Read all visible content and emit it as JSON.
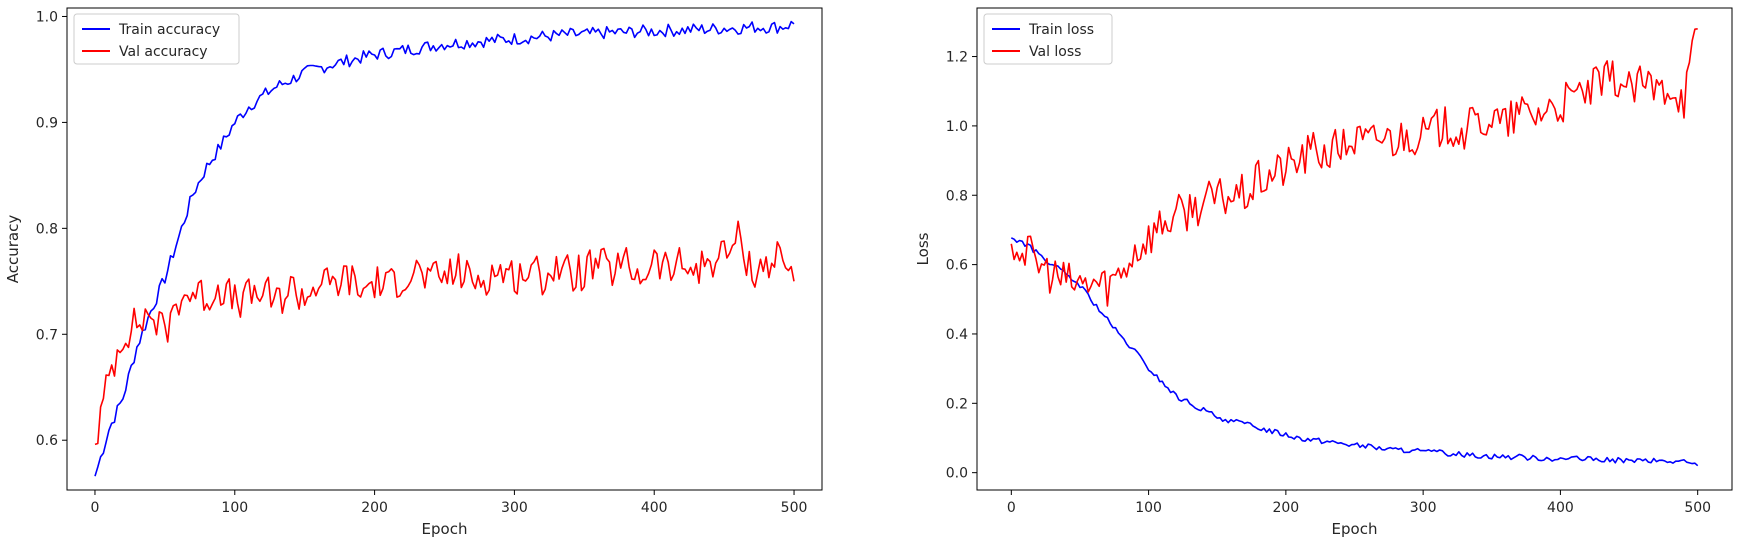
{
  "chart_data": [
    {
      "type": "line",
      "title": "",
      "xlabel": "Epoch",
      "ylabel": "Accuracy",
      "xlim": [
        -20,
        520
      ],
      "ylim": [
        0.553,
        1.008
      ],
      "xticks": [
        0,
        100,
        200,
        300,
        400,
        500
      ],
      "xtick_labels": [
        "0",
        "100",
        "200",
        "300",
        "400",
        "500"
      ],
      "yticks": [
        0.6,
        0.7,
        0.8,
        0.9,
        1.0
      ],
      "ytick_labels": [
        "0.6",
        "0.7",
        "0.8",
        "0.9",
        "1.0"
      ],
      "grid": false,
      "legend": "top-left",
      "series": [
        {
          "name": "Train accuracy",
          "color": "#0000ff",
          "x": [
            0,
            10,
            20,
            30,
            40,
            50,
            60,
            70,
            80,
            90,
            100,
            110,
            120,
            130,
            140,
            150,
            160,
            170,
            180,
            190,
            200,
            210,
            220,
            230,
            240,
            250,
            260,
            270,
            280,
            290,
            300,
            310,
            320,
            330,
            340,
            350,
            360,
            370,
            380,
            390,
            400,
            410,
            420,
            430,
            440,
            450,
            460,
            470,
            480,
            490,
            500
          ],
          "y": [
            0.566,
            0.61,
            0.64,
            0.688,
            0.722,
            0.753,
            0.792,
            0.832,
            0.858,
            0.878,
            0.9,
            0.915,
            0.925,
            0.934,
            0.94,
            0.947,
            0.951,
            0.955,
            0.958,
            0.961,
            0.964,
            0.966,
            0.968,
            0.97,
            0.972,
            0.974,
            0.975,
            0.976,
            0.977,
            0.978,
            0.979,
            0.98,
            0.981,
            0.982,
            0.983,
            0.983,
            0.984,
            0.985,
            0.985,
            0.986,
            0.986,
            0.987,
            0.987,
            0.988,
            0.988,
            0.989,
            0.989,
            0.99,
            0.99,
            0.99,
            0.993
          ]
        },
        {
          "name": "Val accuracy",
          "color": "#ff0000",
          "x": [
            0,
            10,
            20,
            30,
            40,
            50,
            60,
            70,
            80,
            90,
            100,
            110,
            120,
            130,
            140,
            150,
            160,
            170,
            180,
            190,
            200,
            210,
            220,
            230,
            240,
            250,
            260,
            270,
            280,
            290,
            300,
            310,
            320,
            330,
            340,
            350,
            360,
            370,
            380,
            390,
            400,
            410,
            420,
            430,
            440,
            450,
            460,
            470,
            480,
            490,
            500
          ],
          "y": [
            0.596,
            0.66,
            0.7,
            0.71,
            0.72,
            0.7,
            0.735,
            0.74,
            0.735,
            0.745,
            0.73,
            0.735,
            0.74,
            0.73,
            0.745,
            0.735,
            0.75,
            0.745,
            0.755,
            0.74,
            0.75,
            0.745,
            0.755,
            0.76,
            0.75,
            0.755,
            0.76,
            0.75,
            0.755,
            0.76,
            0.755,
            0.76,
            0.755,
            0.765,
            0.755,
            0.76,
            0.765,
            0.76,
            0.765,
            0.755,
            0.77,
            0.76,
            0.765,
            0.76,
            0.77,
            0.775,
            0.79,
            0.76,
            0.765,
            0.775,
            0.75
          ]
        }
      ]
    },
    {
      "type": "line",
      "title": "",
      "xlabel": "Epoch",
      "ylabel": "Loss",
      "xlim": [
        -25,
        525
      ],
      "ylim": [
        -0.05,
        1.34
      ],
      "xticks": [
        0,
        100,
        200,
        300,
        400,
        500
      ],
      "xtick_labels": [
        "0",
        "100",
        "200",
        "300",
        "400",
        "500"
      ],
      "yticks": [
        0.0,
        0.2,
        0.4,
        0.6,
        0.8,
        1.0,
        1.2
      ],
      "ytick_labels": [
        "0.0",
        "0.2",
        "0.4",
        "0.6",
        "0.8",
        "1.0",
        "1.2"
      ],
      "grid": false,
      "legend": "top-left",
      "series": [
        {
          "name": "Train loss",
          "color": "#0000ff",
          "x": [
            0,
            10,
            20,
            30,
            40,
            50,
            60,
            70,
            80,
            90,
            100,
            110,
            120,
            130,
            140,
            150,
            160,
            170,
            180,
            190,
            200,
            210,
            220,
            230,
            240,
            250,
            260,
            270,
            280,
            290,
            300,
            310,
            320,
            330,
            340,
            350,
            360,
            370,
            380,
            390,
            400,
            410,
            420,
            430,
            440,
            450,
            460,
            470,
            480,
            490,
            500
          ],
          "y": [
            0.677,
            0.66,
            0.63,
            0.6,
            0.57,
            0.54,
            0.49,
            0.44,
            0.39,
            0.35,
            0.3,
            0.26,
            0.22,
            0.2,
            0.18,
            0.16,
            0.15,
            0.14,
            0.13,
            0.12,
            0.11,
            0.1,
            0.095,
            0.09,
            0.085,
            0.08,
            0.075,
            0.07,
            0.065,
            0.065,
            0.06,
            0.058,
            0.055,
            0.052,
            0.05,
            0.048,
            0.046,
            0.045,
            0.043,
            0.042,
            0.04,
            0.04,
            0.038,
            0.037,
            0.036,
            0.035,
            0.034,
            0.033,
            0.032,
            0.031,
            0.02
          ]
        },
        {
          "name": "Val loss",
          "color": "#ff0000",
          "x": [
            0,
            10,
            20,
            30,
            40,
            50,
            60,
            70,
            80,
            90,
            100,
            110,
            120,
            130,
            140,
            150,
            160,
            170,
            180,
            190,
            200,
            210,
            220,
            230,
            240,
            250,
            260,
            270,
            280,
            290,
            300,
            310,
            320,
            330,
            340,
            350,
            360,
            370,
            380,
            390,
            400,
            410,
            420,
            430,
            440,
            450,
            460,
            470,
            480,
            490,
            500
          ],
          "y": [
            0.66,
            0.64,
            0.6,
            0.57,
            0.55,
            0.54,
            0.55,
            0.54,
            0.58,
            0.64,
            0.68,
            0.72,
            0.74,
            0.76,
            0.78,
            0.79,
            0.8,
            0.8,
            0.84,
            0.86,
            0.88,
            0.9,
            0.93,
            0.92,
            0.94,
            0.96,
            0.95,
            0.97,
            0.96,
            0.98,
            0.97,
            0.99,
            1.0,
            0.98,
            1.01,
            1.02,
            1.0,
            1.04,
            1.03,
            1.05,
            1.06,
            1.08,
            1.1,
            1.12,
            1.14,
            1.1,
            1.12,
            1.1,
            1.12,
            1.08,
            1.28
          ]
        }
      ]
    }
  ]
}
